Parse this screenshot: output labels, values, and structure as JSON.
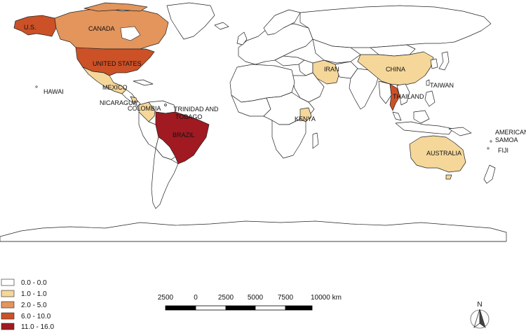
{
  "legend": {
    "classes": [
      {
        "label": "0.0 - 0.0",
        "color": "#ffffff"
      },
      {
        "label": "1.0 - 1.0",
        "color": "#f5d79a"
      },
      {
        "label": "2.0 - 5.0",
        "color": "#e3955c"
      },
      {
        "label": "6.0 - 10.0",
        "color": "#cc5127"
      },
      {
        "label": "11.0 - 16.0",
        "color": "#a11a21"
      }
    ]
  },
  "scale_bar": {
    "ticks": [
      "2500",
      "0",
      "2500",
      "5000",
      "7500",
      "10000 km"
    ]
  },
  "north_arrow": {
    "label": "N"
  },
  "labels": {
    "us": "U.S.",
    "canada": "CANADA",
    "united_states": "UNITED STATES",
    "hawai": "HAWAI",
    "mexico": "MEXICO",
    "nicaragua": "NICARAGUA",
    "colombia": "COLOMBIA",
    "trinidad_1": "TRINIDAD AND",
    "trinidad_2": "TOBAGO",
    "brazil": "BRAZIL",
    "iran": "IRAN",
    "china": "CHINA",
    "taiwan": "TAIWAN",
    "thailand": "THAILAND",
    "kenya": "KENYA",
    "australia": "AUSTRALIA",
    "american_samoa_1": "AMERICAN",
    "american_samoa_2": "SAMOA",
    "fiji": "FIJI"
  }
}
